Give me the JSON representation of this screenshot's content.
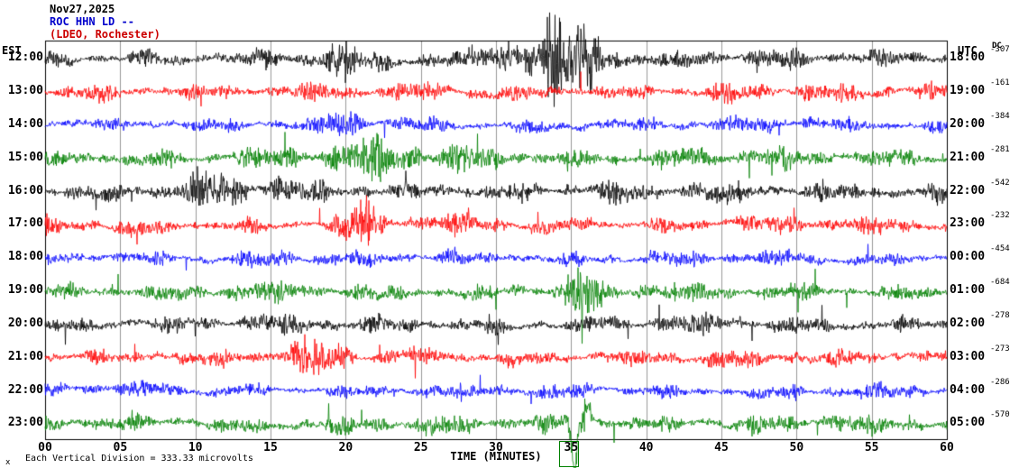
{
  "header": {
    "date": "Nov27,2025",
    "station": "ROC HHN LD --",
    "location": "(LDEO, Rochester)"
  },
  "axes": {
    "left_label": "EST",
    "right_label": "UTC",
    "dc_label": "DC",
    "x_title": "TIME (MINUTES)",
    "x_ticks": [
      "00",
      "05",
      "10",
      "15",
      "20",
      "25",
      "30",
      "35",
      "40",
      "45",
      "50",
      "55",
      "60"
    ]
  },
  "footer": {
    "scale_note": "Each Vertical Division =  333.33 microvolts",
    "artifact": "x"
  },
  "chart_data": {
    "type": "line",
    "title": "ROC HHN LD -- (LDEO, Rochester) Nov27,2025",
    "xlabel": "TIME (MINUTES)",
    "x_range": [
      0,
      60
    ],
    "x_tick_step": 5,
    "vertical_division_microvolts": 333.33,
    "seed": 20251127,
    "grid_color": "#999999",
    "trace_colors": {
      "black": "#000000",
      "red": "#ff0000",
      "blue": "#0000ff",
      "green": "#008000"
    },
    "rows": [
      {
        "est": "12:00",
        "utc": "18:00",
        "dc": "-307",
        "color": "black",
        "amp": 9
      },
      {
        "est": "13:00",
        "utc": "19:00",
        "dc": "-161",
        "color": "red",
        "amp": 9
      },
      {
        "est": "14:00",
        "utc": "20:00",
        "dc": "-384",
        "color": "blue",
        "amp": 7.5
      },
      {
        "est": "15:00",
        "utc": "21:00",
        "dc": "-281",
        "color": "green",
        "amp": 10
      },
      {
        "est": "16:00",
        "utc": "22:00",
        "dc": "-542",
        "color": "black",
        "amp": 10.5
      },
      {
        "est": "17:00",
        "utc": "23:00",
        "dc": "-232",
        "color": "red",
        "amp": 9
      },
      {
        "est": "18:00",
        "utc": "00:00",
        "dc": "-454",
        "color": "blue",
        "amp": 7.5
      },
      {
        "est": "19:00",
        "utc": "01:00",
        "dc": "-684",
        "color": "green",
        "amp": 9.5
      },
      {
        "est": "20:00",
        "utc": "02:00",
        "dc": "-278",
        "color": "black",
        "amp": 9
      },
      {
        "est": "21:00",
        "utc": "03:00",
        "dc": "-273",
        "color": "red",
        "amp": 8.5
      },
      {
        "est": "22:00",
        "utc": "04:00",
        "dc": "-286",
        "color": "blue",
        "amp": 7.5
      },
      {
        "est": "23:00",
        "utc": "05:00",
        "dc": "-570",
        "color": "green",
        "amp": 9
      }
    ],
    "events": [
      {
        "row": 0,
        "minute": 34.6,
        "width": 2.2,
        "gain": 5.5
      },
      {
        "row": 0,
        "minute": 31.0,
        "width": 1.0,
        "gain": 2.5
      },
      {
        "row": 0,
        "minute": 19.2,
        "width": 0.8,
        "gain": 1.8
      },
      {
        "row": 2,
        "minute": 20.0,
        "width": 0.7,
        "gain": 1.5
      },
      {
        "row": 3,
        "minute": 23.5,
        "width": 3.5,
        "gain": 1.2
      },
      {
        "row": 4,
        "minute": 12.0,
        "width": 2.0,
        "gain": 1.0
      },
      {
        "row": 5,
        "minute": 21.2,
        "width": 0.8,
        "gain": 1.8
      },
      {
        "row": 7,
        "minute": 35.6,
        "width": 0.7,
        "gain": 2.0
      },
      {
        "row": 9,
        "minute": 17.5,
        "width": 1.5,
        "gain": 1.3
      },
      {
        "row": 11,
        "minute": 35.2,
        "width": 0.5,
        "gain": 2.0,
        "spike": -48
      },
      {
        "row": 11,
        "minute": 36.1,
        "width": 0.4,
        "gain": 1.5,
        "spike": 16
      }
    ]
  }
}
